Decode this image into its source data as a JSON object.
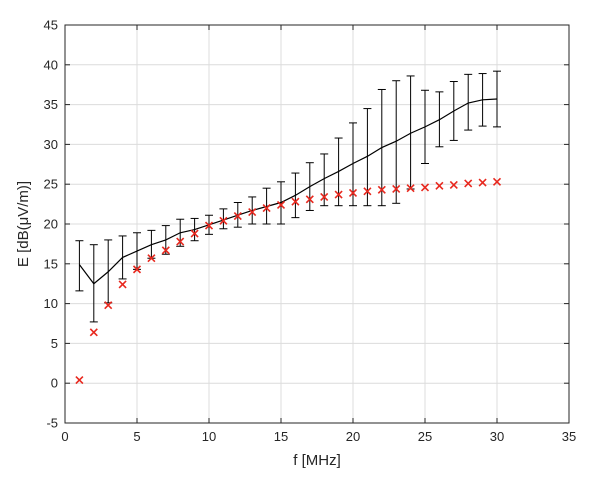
{
  "chart_data": {
    "type": "line",
    "xlabel": "f [MHz]",
    "ylabel": "E [dB(μV/m)]",
    "xlim": [
      0,
      35
    ],
    "ylim": [
      -5,
      45
    ],
    "xticks": [
      "0",
      "5",
      "10",
      "15",
      "20",
      "25",
      "30",
      "35"
    ],
    "yticks": [
      "-5",
      "0",
      "5",
      "10",
      "15",
      "20",
      "25",
      "30",
      "35",
      "40",
      "45"
    ],
    "grid": true,
    "legend": "none",
    "series": [
      {
        "style": "line-with-error-bars",
        "color": "#000000",
        "x": [
          1,
          2,
          3,
          4,
          5,
          6,
          7,
          8,
          9,
          10,
          11,
          12,
          13,
          14,
          15,
          16,
          17,
          18,
          19,
          20,
          21,
          22,
          23,
          24,
          25,
          26,
          27,
          28,
          29,
          30
        ],
        "y": [
          14.9,
          12.5,
          14.0,
          15.8,
          16.6,
          17.4,
          18.0,
          18.9,
          19.3,
          19.9,
          20.5,
          21.1,
          21.7,
          22.2,
          22.7,
          23.6,
          24.7,
          25.7,
          26.6,
          27.6,
          28.5,
          29.6,
          30.4,
          31.4,
          32.2,
          33.1,
          34.2,
          35.2,
          35.6,
          35.7
        ],
        "upper": [
          17.9,
          17.4,
          18.0,
          18.5,
          18.9,
          19.2,
          19.8,
          20.6,
          20.7,
          21.1,
          21.9,
          22.7,
          23.4,
          24.5,
          25.3,
          26.4,
          27.7,
          28.8,
          30.8,
          32.7,
          34.5,
          36.9,
          38.0,
          38.6,
          36.8,
          36.6,
          37.9,
          38.8,
          38.9,
          39.2
        ],
        "lower": [
          11.6,
          7.7,
          10.1,
          13.1,
          14.3,
          15.7,
          16.2,
          17.2,
          17.9,
          18.7,
          19.4,
          19.6,
          20.0,
          20.0,
          20.0,
          20.8,
          21.7,
          22.3,
          22.3,
          22.3,
          22.3,
          22.3,
          22.6,
          24.4,
          27.6,
          29.7,
          30.5,
          31.8,
          32.3,
          32.2
        ]
      },
      {
        "style": "markers-x",
        "color": "#e8281e",
        "x": [
          1,
          2,
          3,
          4,
          5,
          6,
          7,
          8,
          9,
          10,
          11,
          12,
          13,
          14,
          15,
          16,
          17,
          18,
          19,
          20,
          21,
          22,
          23,
          24,
          25,
          26,
          27,
          28,
          29,
          30
        ],
        "y": [
          0.4,
          6.4,
          9.8,
          12.4,
          14.3,
          15.7,
          16.7,
          17.8,
          18.8,
          19.8,
          20.4,
          21.0,
          21.5,
          22.0,
          22.4,
          22.8,
          23.1,
          23.4,
          23.7,
          23.9,
          24.1,
          24.3,
          24.4,
          24.5,
          24.6,
          24.8,
          24.9,
          25.1,
          25.2,
          25.3
        ]
      }
    ]
  }
}
